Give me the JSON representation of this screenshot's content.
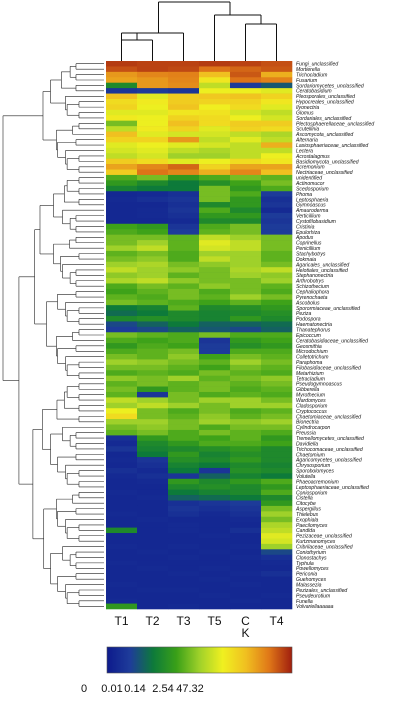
{
  "chart_data": {
    "type": "heatmap",
    "title": "",
    "columns": [
      "T1",
      "T2",
      "T3",
      "T5",
      "C K",
      "T4"
    ],
    "rows": [
      "Fungi_unclassified",
      "Mortierella",
      "Trichocladium",
      "Fusarium",
      "Sordariomycetes_unclassified",
      "Ceratobasidium",
      "Pleosporales_unclassified",
      "Hypocreales_unclassified",
      "Ilyonectria",
      "Glomus",
      "Sordariales_unclassified",
      "Plectosphaerellaceae_unclassified",
      "Scutellinia",
      "Ascomycota_unclassified",
      "Alternaria",
      "Lasiosphaeriaceae_unclassified",
      "Lectera",
      "Acrostalagmus",
      "Basidiomycota_unclassified",
      "Acremonium",
      "Nectriaceae_unclassified",
      "unidentified",
      "Actinomucor",
      "Scedosporium",
      "Phoma",
      "Leptosphaeria",
      "Gymnoascus",
      "Amauroderma",
      "Verticillium",
      "Cystofilobasidium",
      "Cristinia",
      "Epulorhiza",
      "Apodus",
      "Coprinellus",
      "Penicillium",
      "Stachybotrys",
      "Dokmaia",
      "Agaricales_unclassified",
      "Helotiales_unclassified",
      "Stephanonectria",
      "Arthrobotrys",
      "Schizothecium",
      "Cephaliophora",
      "Pyrenochaeta",
      "Ascobolus",
      "Sporormiaceae_unclassified",
      "Peziza",
      "Podospora",
      "Haematonectria",
      "Thanatephorus",
      "Epicoccum",
      "Ceratobasidiaceae_unclassified",
      "Geosmithia",
      "Microdochium",
      "Colletotrichum",
      "Paraphoma",
      "Filobasidiaceae_unclassified",
      "Metarhizium",
      "Tetracladium",
      "Pseudogymnoascus",
      "Gibberella",
      "Myrothecium",
      "Wardomyces",
      "Cladosporium",
      "Cryptococcus",
      "Chaetomiaceae_unclassified",
      "Bionectria",
      "Cylindrocarpon",
      "Preussia",
      "Tremellomycetes_unclassified",
      "Davidiella",
      "Trichocomaceae_unclassified",
      "Chaetomium",
      "Agaricomycetes_unclassified",
      "Chrysosporium",
      "Sporobolomyces",
      "Volutella",
      "Phaeoacremonium",
      "Leptosphaeriaceae_unclassified",
      "Coniosporium",
      "Cistella",
      "Citocybe",
      "Aspergillus",
      "Thielebus",
      "Exophiala",
      "Paecilomyces",
      "Candida",
      "Pezizaceae_unclassified",
      "Kurtzmanomyces",
      "Cribrilaceae_unclassified",
      "Coniothyrium",
      "Clonostachys",
      "Typhula",
      "Powellomyces",
      "Periconia",
      "Guehomyces",
      "Malassezia",
      "Pezizales_unclassified",
      "Pseudeurotium",
      "Funella",
      "Volvariellaaaaaa"
    ],
    "values": [
      [
        0.96,
        0.95,
        0.95,
        0.96,
        0.95,
        0.93
      ],
      [
        0.93,
        0.95,
        0.94,
        0.88,
        0.9,
        0.92
      ],
      [
        0.82,
        0.85,
        0.86,
        0.75,
        0.92,
        0.78
      ],
      [
        0.8,
        0.82,
        0.85,
        0.65,
        0.88,
        0.86
      ],
      [
        0.3,
        0.82,
        0.84,
        0.55,
        0.12,
        0.18
      ],
      [
        0.1,
        0.12,
        0.1,
        0.62,
        0.62,
        0.6
      ],
      [
        0.75,
        0.6,
        0.72,
        0.73,
        0.74,
        0.7
      ],
      [
        0.68,
        0.64,
        0.72,
        0.7,
        0.7,
        0.65
      ],
      [
        0.7,
        0.62,
        0.74,
        0.63,
        0.68,
        0.6
      ],
      [
        0.6,
        0.6,
        0.65,
        0.66,
        0.58,
        0.55
      ],
      [
        0.64,
        0.62,
        0.7,
        0.68,
        0.62,
        0.58
      ],
      [
        0.45,
        0.62,
        0.75,
        0.68,
        0.72,
        0.72
      ],
      [
        0.55,
        0.64,
        0.7,
        0.6,
        0.7,
        0.68
      ],
      [
        0.75,
        0.6,
        0.58,
        0.58,
        0.55,
        0.52
      ],
      [
        0.7,
        0.7,
        0.82,
        0.55,
        0.6,
        0.55
      ],
      [
        0.6,
        0.62,
        0.6,
        0.58,
        0.55,
        0.78
      ],
      [
        0.58,
        0.6,
        0.55,
        0.52,
        0.55,
        0.55
      ],
      [
        0.55,
        0.58,
        0.5,
        0.5,
        0.55,
        0.62
      ],
      [
        0.72,
        0.68,
        0.6,
        0.62,
        0.68,
        0.65
      ],
      [
        0.8,
        0.85,
        0.9,
        0.7,
        0.8,
        0.8
      ],
      [
        0.72,
        0.88,
        0.85,
        0.78,
        0.85,
        0.75
      ],
      [
        0.4,
        0.45,
        0.35,
        0.4,
        0.45,
        0.42
      ],
      [
        0.35,
        0.3,
        0.25,
        0.32,
        0.38,
        0.45
      ],
      [
        0.28,
        0.25,
        0.25,
        0.45,
        0.35,
        0.4
      ],
      [
        0.05,
        0.06,
        0.08,
        0.45,
        0.4,
        0.12
      ],
      [
        0.06,
        0.08,
        0.1,
        0.45,
        0.35,
        0.08
      ],
      [
        0.05,
        0.05,
        0.08,
        0.3,
        0.35,
        0.1
      ],
      [
        0.05,
        0.06,
        0.1,
        0.4,
        0.3,
        0.06
      ],
      [
        0.05,
        0.06,
        0.08,
        0.35,
        0.35,
        0.12
      ],
      [
        0.05,
        0.05,
        0.06,
        0.3,
        0.3,
        0.1
      ],
      [
        0.38,
        0.35,
        0.1,
        0.4,
        0.45,
        0.12
      ],
      [
        0.4,
        0.38,
        0.12,
        0.42,
        0.45,
        0.12
      ],
      [
        0.45,
        0.45,
        0.42,
        0.55,
        0.5,
        0.45
      ],
      [
        0.45,
        0.5,
        0.42,
        0.6,
        0.55,
        0.45
      ],
      [
        0.5,
        0.55,
        0.42,
        0.58,
        0.55,
        0.45
      ],
      [
        0.42,
        0.45,
        0.4,
        0.5,
        0.5,
        0.42
      ],
      [
        0.45,
        0.48,
        0.4,
        0.55,
        0.5,
        0.42
      ],
      [
        0.5,
        0.52,
        0.45,
        0.48,
        0.5,
        0.45
      ],
      [
        0.55,
        0.5,
        0.48,
        0.45,
        0.52,
        0.55
      ],
      [
        0.48,
        0.5,
        0.42,
        0.45,
        0.5,
        0.48
      ],
      [
        0.52,
        0.55,
        0.48,
        0.45,
        0.45,
        0.5
      ],
      [
        0.4,
        0.45,
        0.42,
        0.48,
        0.45,
        0.42
      ],
      [
        0.38,
        0.42,
        0.45,
        0.4,
        0.45,
        0.4
      ],
      [
        0.42,
        0.4,
        0.45,
        0.42,
        0.5,
        0.45
      ],
      [
        0.45,
        0.42,
        0.4,
        0.38,
        0.42,
        0.38
      ],
      [
        0.25,
        0.28,
        0.42,
        0.3,
        0.32,
        0.35
      ],
      [
        0.22,
        0.25,
        0.3,
        0.28,
        0.3,
        0.32
      ],
      [
        0.3,
        0.32,
        0.3,
        0.28,
        0.35,
        0.3
      ],
      [
        0.15,
        0.2,
        0.25,
        0.2,
        0.2,
        0.22
      ],
      [
        0.12,
        0.15,
        0.2,
        0.18,
        0.15,
        0.2
      ],
      [
        0.45,
        0.42,
        0.4,
        0.45,
        0.4,
        0.4
      ],
      [
        0.4,
        0.38,
        0.4,
        0.1,
        0.35,
        0.38
      ],
      [
        0.35,
        0.4,
        0.38,
        0.12,
        0.32,
        0.35
      ],
      [
        0.4,
        0.42,
        0.45,
        0.12,
        0.4,
        0.4
      ],
      [
        0.45,
        0.42,
        0.48,
        0.38,
        0.45,
        0.42
      ],
      [
        0.5,
        0.48,
        0.45,
        0.42,
        0.5,
        0.45
      ],
      [
        0.45,
        0.45,
        0.42,
        0.38,
        0.45,
        0.42
      ],
      [
        0.4,
        0.42,
        0.4,
        0.45,
        0.42,
        0.4
      ],
      [
        0.48,
        0.45,
        0.5,
        0.42,
        0.45,
        0.48
      ],
      [
        0.42,
        0.45,
        0.42,
        0.45,
        0.42,
        0.45
      ],
      [
        0.45,
        0.35,
        0.42,
        0.45,
        0.4,
        0.42
      ],
      [
        0.42,
        0.1,
        0.45,
        0.4,
        0.42,
        0.4
      ],
      [
        0.55,
        0.5,
        0.45,
        0.5,
        0.5,
        0.45
      ],
      [
        0.5,
        0.55,
        0.5,
        0.45,
        0.5,
        0.5
      ],
      [
        0.62,
        0.45,
        0.4,
        0.45,
        0.4,
        0.42
      ],
      [
        0.68,
        0.45,
        0.42,
        0.48,
        0.42,
        0.45
      ],
      [
        0.5,
        0.5,
        0.45,
        0.5,
        0.48,
        0.5
      ],
      [
        0.45,
        0.48,
        0.45,
        0.4,
        0.45,
        0.45
      ],
      [
        0.42,
        0.45,
        0.4,
        0.45,
        0.42,
        0.4
      ],
      [
        0.08,
        0.35,
        0.4,
        0.38,
        0.42,
        0.35
      ],
      [
        0.06,
        0.3,
        0.35,
        0.4,
        0.4,
        0.38
      ],
      [
        0.1,
        0.28,
        0.3,
        0.32,
        0.35,
        0.3
      ],
      [
        0.05,
        0.25,
        0.35,
        0.28,
        0.32,
        0.3
      ],
      [
        0.06,
        0.1,
        0.32,
        0.3,
        0.35,
        0.3
      ],
      [
        0.05,
        0.08,
        0.28,
        0.25,
        0.3,
        0.28
      ],
      [
        0.08,
        0.06,
        0.25,
        0.1,
        0.32,
        0.3
      ],
      [
        0.06,
        0.08,
        0.1,
        0.2,
        0.28,
        0.25
      ],
      [
        0.05,
        0.06,
        0.35,
        0.3,
        0.35,
        0.4
      ],
      [
        0.05,
        0.05,
        0.3,
        0.32,
        0.3,
        0.35
      ],
      [
        0.06,
        0.05,
        0.25,
        0.28,
        0.3,
        0.4
      ],
      [
        0.05,
        0.06,
        0.2,
        0.22,
        0.25,
        0.3
      ],
      [
        0.05,
        0.05,
        0.08,
        0.1,
        0.12,
        0.35
      ],
      [
        0.05,
        0.05,
        0.1,
        0.08,
        0.1,
        0.45
      ],
      [
        0.06,
        0.05,
        0.08,
        0.06,
        0.08,
        0.5
      ],
      [
        0.05,
        0.06,
        0.05,
        0.05,
        0.06,
        0.45
      ],
      [
        0.05,
        0.05,
        0.06,
        0.05,
        0.05,
        0.52
      ],
      [
        0.3,
        0.05,
        0.06,
        0.05,
        0.08,
        0.55
      ],
      [
        0.05,
        0.05,
        0.05,
        0.06,
        0.05,
        0.6
      ],
      [
        0.05,
        0.05,
        0.05,
        0.05,
        0.05,
        0.58
      ],
      [
        0.06,
        0.05,
        0.06,
        0.05,
        0.06,
        0.5
      ],
      [
        0.05,
        0.06,
        0.05,
        0.06,
        0.05,
        0.15
      ],
      [
        0.05,
        0.05,
        0.06,
        0.05,
        0.06,
        0.08
      ],
      [
        0.06,
        0.05,
        0.05,
        0.05,
        0.05,
        0.06
      ],
      [
        0.05,
        0.06,
        0.05,
        0.06,
        0.05,
        0.05
      ],
      [
        0.05,
        0.05,
        0.06,
        0.05,
        0.06,
        0.08
      ],
      [
        0.05,
        0.05,
        0.05,
        0.06,
        0.05,
        0.05
      ],
      [
        0.06,
        0.05,
        0.05,
        0.05,
        0.06,
        0.05
      ],
      [
        0.05,
        0.06,
        0.06,
        0.05,
        0.05,
        0.05
      ],
      [
        0.05,
        0.05,
        0.05,
        0.06,
        0.05,
        0.06
      ],
      [
        0.06,
        0.05,
        0.05,
        0.05,
        0.06,
        0.05
      ],
      [
        0.35,
        0.05,
        0.06,
        0.05,
        0.05,
        0.05
      ]
    ],
    "color_scale": {
      "ticks": [
        "0",
        "0.01",
        "0.14",
        "2.54",
        "47.32"
      ],
      "colors": [
        "#0d1a8c",
        "#1e3c9a",
        "#0d7a3a",
        "#3aa018",
        "#9fd12a",
        "#f0f020",
        "#f0c020",
        "#e07818",
        "#a01e0e"
      ]
    },
    "row_dendrogram": true,
    "column_dendrogram": true
  }
}
